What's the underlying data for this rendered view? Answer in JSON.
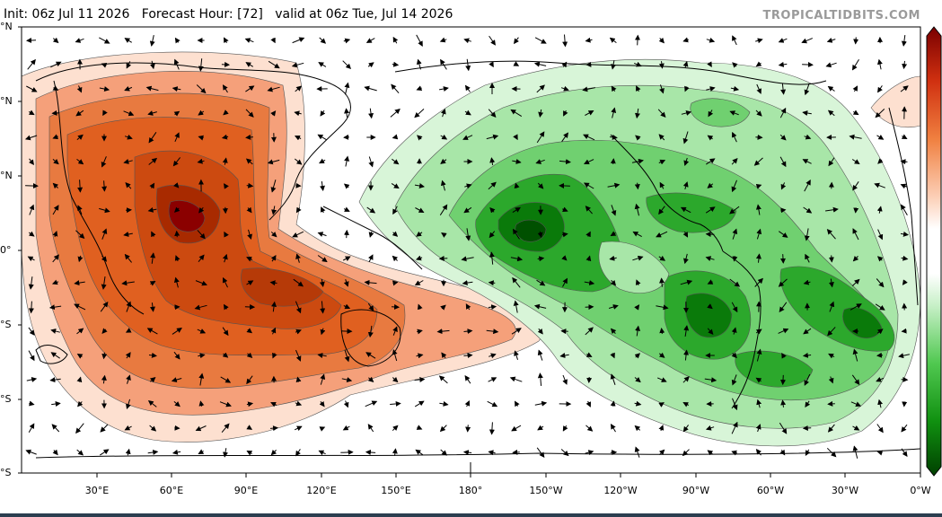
{
  "header": {
    "init": "Init: 06z Jul 11 2026",
    "forecast_hour": "Forecast Hour: [72]",
    "valid": "valid at 06z Tue, Jul 14 2026",
    "brand": "TROPICALTIDBITS.COM"
  },
  "map": {
    "lat_labels": [
      "°N",
      "°N",
      "°N",
      "0°",
      "°S",
      "°S",
      "°S"
    ],
    "lon_labels": [
      "30°E",
      "60°E",
      "90°E",
      "120°E",
      "150°E",
      "180°",
      "150°W",
      "120°W",
      "90°W",
      "60°W",
      "30°W",
      "0°W"
    ],
    "colors": {
      "positive_dark": "#8b0000",
      "positive_mid": "#e0601a",
      "positive_light": "#fde0d0",
      "negative_dark": "#005a00",
      "negative_mid": "#2cb82c",
      "negative_light": "#d8f5d8"
    }
  }
}
